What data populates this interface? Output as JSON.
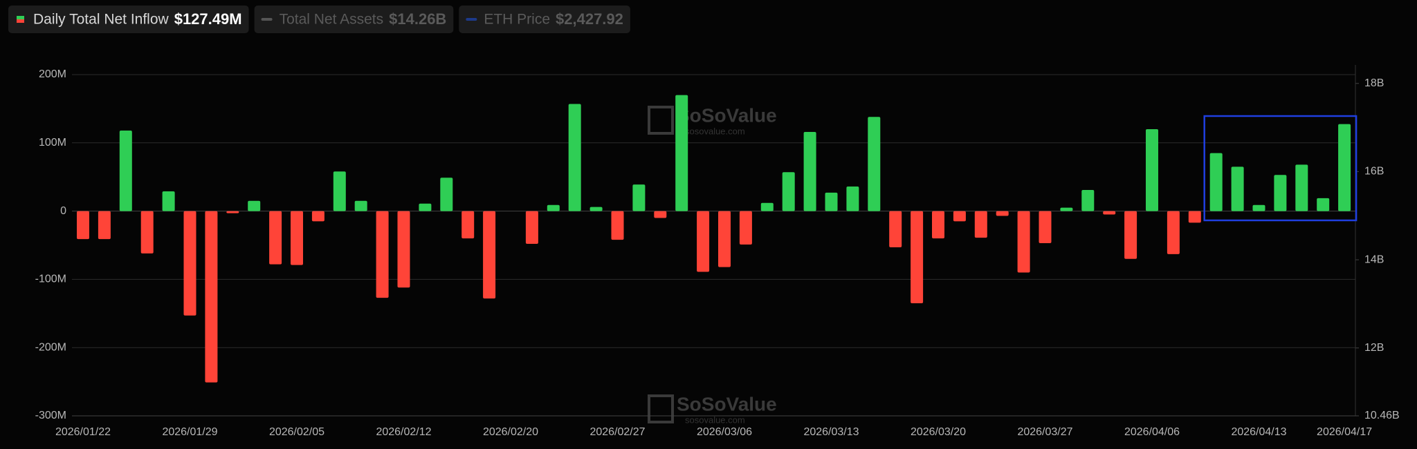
{
  "chart_data": {
    "type": "bar",
    "legend": [
      {
        "name": "Daily Total Net Inflow",
        "value": "$127.49M",
        "active": true
      },
      {
        "name": "Total Net Assets",
        "value": "$14.26B",
        "active": false
      },
      {
        "name": "ETH Price",
        "value": "$2,427.92",
        "active": false
      }
    ],
    "watermark": {
      "brand": "SoSoValue",
      "site": "sosovalue.com"
    },
    "categories": [
      "2026/01/22",
      null,
      null,
      null,
      null,
      "2026/01/29",
      null,
      null,
      null,
      null,
      "2026/02/05",
      null,
      null,
      null,
      null,
      "2026/02/12",
      null,
      null,
      null,
      null,
      "2026/02/20",
      null,
      null,
      null,
      null,
      "2026/02/27",
      null,
      null,
      null,
      null,
      "2026/03/06",
      null,
      null,
      null,
      null,
      "2026/03/13",
      null,
      null,
      null,
      null,
      "2026/03/20",
      null,
      null,
      null,
      null,
      "2026/03/27",
      null,
      null,
      null,
      null,
      "2026/04/06",
      null,
      null,
      null,
      null,
      "2026/04/13",
      null,
      null,
      null,
      "2026/04/17"
    ],
    "values": [
      -41,
      -41,
      118,
      -62,
      29,
      -153,
      -251,
      -3,
      15,
      -78,
      -79,
      -15,
      58,
      15,
      -127,
      -112,
      11,
      49,
      -40,
      -128,
      0,
      -48,
      9,
      157,
      6,
      -42,
      39,
      -10,
      170,
      -89,
      -82,
      -49,
      12,
      57,
      116,
      27,
      36,
      138,
      -53,
      -135,
      -40,
      -15,
      -39,
      -7,
      -90,
      -47,
      5,
      31,
      -5,
      -70,
      120,
      -63,
      -17,
      85,
      65,
      9,
      53,
      68,
      19,
      127.49
    ],
    "positive_color": "#2fce55",
    "negative_color": "#ff4438",
    "ylim": [
      -300,
      200
    ],
    "yticks": [
      {
        "value": -300,
        "label": "-300M"
      },
      {
        "value": -200,
        "label": "-200M"
      },
      {
        "value": -100,
        "label": "-100M"
      },
      0,
      {
        "value": 100,
        "label": "100M"
      },
      {
        "value": 200,
        "label": "200M"
      }
    ],
    "y2lim": [
      10.46,
      18.2
    ],
    "y2ticks": [
      {
        "value": 10.46,
        "label": "10.46B"
      },
      {
        "value": 12,
        "label": "12B"
      },
      {
        "value": 14,
        "label": "14B"
      },
      {
        "value": 16,
        "label": "16B"
      },
      {
        "value": 18,
        "label": "18B"
      }
    ],
    "grid": true
  }
}
